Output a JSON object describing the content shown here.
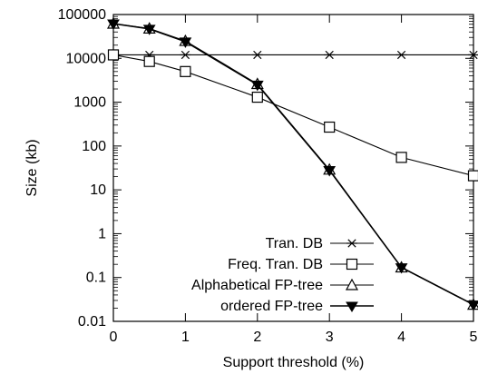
{
  "chart_data": {
    "type": "line",
    "xlabel": "Support threshold (%)",
    "ylabel": "Size (kb)",
    "xlim": [
      0,
      5
    ],
    "ylim": [
      0.01,
      100000
    ],
    "yscale": "log",
    "grid": false,
    "legend_position": "bottom-left",
    "x_ticks": [
      0,
      1,
      2,
      3,
      4,
      5
    ],
    "x_tick_labels": [
      "0",
      "1",
      "2",
      "3",
      "4",
      "5"
    ],
    "y_ticks": [
      0.01,
      0.1,
      1,
      10,
      100,
      1000,
      10000,
      100000
    ],
    "y_tick_labels": [
      "0.01",
      "0.1",
      "1",
      "10",
      "100",
      "1000",
      "10000",
      "100000"
    ],
    "series": [
      {
        "name": "Tran. DB",
        "marker": "asterisk",
        "x": [
          0,
          0.5,
          1,
          2,
          3,
          4,
          5
        ],
        "values": [
          12000,
          12000,
          12000,
          12000,
          12000,
          12000,
          12000
        ]
      },
      {
        "name": "Freq. Tran. DB",
        "marker": "open-square",
        "x": [
          0,
          0.5,
          1,
          2,
          3,
          4,
          5
        ],
        "values": [
          12000,
          8500,
          5000,
          1300,
          270,
          55,
          21
        ]
      },
      {
        "name": "Alphabetical FP-tree",
        "marker": "open-triangle",
        "x": [
          0,
          0.5,
          1,
          2,
          3,
          4,
          5
        ],
        "values": [
          62000,
          48000,
          25000,
          2600,
          29,
          0.17,
          0.024
        ]
      },
      {
        "name": "ordered FP-tree",
        "marker": "filled-triangle-down",
        "x": [
          0,
          0.5,
          1,
          2,
          3,
          4,
          5
        ],
        "values": [
          62000,
          47000,
          24000,
          2500,
          28,
          0.17,
          0.024
        ]
      }
    ]
  }
}
